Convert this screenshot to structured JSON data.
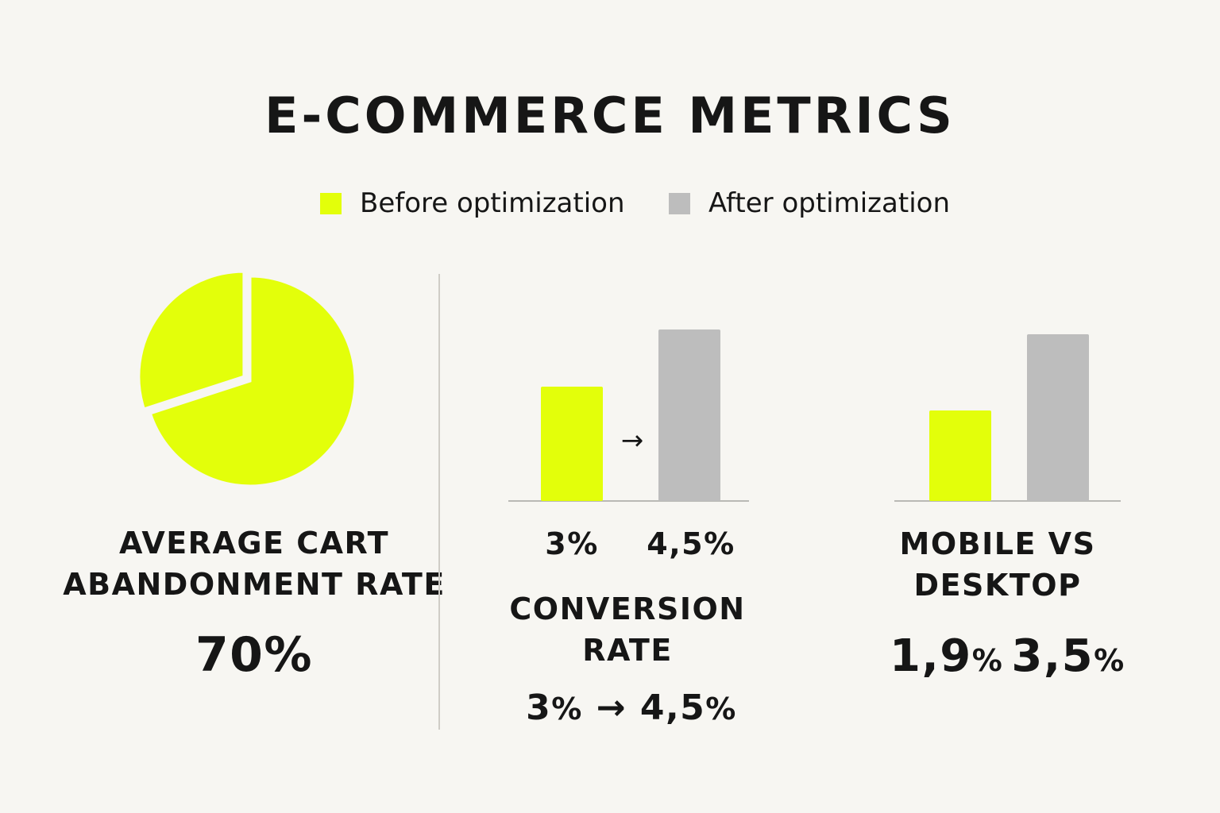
{
  "title": "E-COMMERCE METRICS",
  "legend": [
    {
      "label": "Before optimization",
      "color": "#e3ff0a"
    },
    {
      "label": "After optimization",
      "color": "#bdbdbd"
    }
  ],
  "colors": {
    "before": "#e3ff0a",
    "after": "#bdbdbd",
    "baseline": "#b9b9b5"
  },
  "chart_data": [
    {
      "type": "pie",
      "title_line1": "AVERAGE CART",
      "title_line2": "ABANDONMENT RATE",
      "value_label": "70%",
      "slices": [
        {
          "value": 70,
          "color": "#e3ff0a"
        },
        {
          "value": 30,
          "color": "#e3ff0a",
          "exploded": true
        }
      ]
    },
    {
      "type": "bar",
      "categories": [
        "3%",
        "4,5%"
      ],
      "values": [
        3,
        4.5
      ],
      "ylim": [
        0,
        5
      ],
      "arrow": "→",
      "tick_labels": {
        "a_num": "3",
        "a_pct": "%",
        "b_num": "4,5",
        "b_pct": "%"
      },
      "title_line1": "CONVERSION",
      "title_line2": "RATE",
      "summary": {
        "a_num": "3",
        "a_pct": "%",
        "arrow": "→",
        "b_num": "4,5",
        "b_pct": "%"
      }
    },
    {
      "type": "bar",
      "categories": [
        "1,9%",
        "3,5%"
      ],
      "values": [
        1.9,
        3.5
      ],
      "ylim": [
        0,
        4
      ],
      "title_line1": "MOBILE VS",
      "title_line2": "DESKTOP",
      "value_labels": {
        "a_num": "1,9",
        "a_pct": "%",
        "b_num": "3,5",
        "b_pct": "%"
      }
    }
  ]
}
